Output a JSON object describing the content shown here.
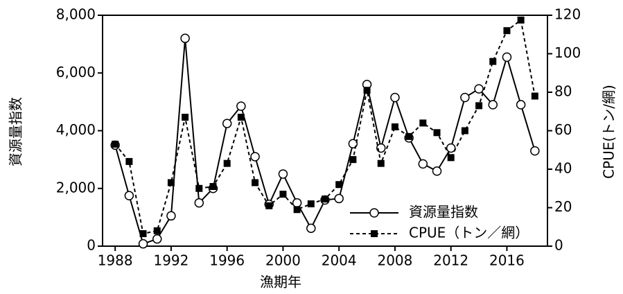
{
  "chart_data": {
    "type": "line",
    "x_label": "漁期年",
    "y_label": "資源量指数",
    "y2_label": "CPUE(トン/網)",
    "x": [
      1988,
      1989,
      1990,
      1991,
      1992,
      1993,
      1994,
      1995,
      1996,
      1997,
      1998,
      1999,
      2000,
      2001,
      2002,
      2003,
      2004,
      2005,
      2006,
      2007,
      2008,
      2009,
      2010,
      2011,
      2012,
      2013,
      2014,
      2015,
      2016,
      2017,
      2018
    ],
    "xlim": [
      1987.1,
      2018.9
    ],
    "xticks": [
      1988,
      1992,
      1996,
      2000,
      2004,
      2008,
      2012,
      2016
    ],
    "ylim": [
      0,
      8000
    ],
    "yticks": [
      0,
      {
        "value": 2000,
        "label": "2,000"
      },
      {
        "value": 4000,
        "label": "4,000"
      },
      {
        "value": 6000,
        "label": "6,000"
      },
      {
        "value": 8000,
        "label": "8,000"
      }
    ],
    "y2lim": [
      0,
      120
    ],
    "y2ticks": [
      0,
      20,
      40,
      60,
      80,
      100,
      120
    ],
    "legend": "bottom-right",
    "series": [
      {
        "name": "資源量指数",
        "color": "#000000",
        "marker": "circle",
        "dash": "solid",
        "values": [
          3500,
          1750,
          80,
          250,
          1050,
          7200,
          1500,
          2000,
          4250,
          4850,
          3100,
          1450,
          2500,
          1500,
          620,
          1600,
          1650,
          3550,
          5600,
          3400,
          5150,
          3750,
          2850,
          2600,
          3400,
          5150,
          5450,
          4900,
          6550,
          4900,
          3300
        ]
      },
      {
        "name": "CPUE（トン／網）",
        "color": "#000000",
        "marker": "square",
        "dash": "dashed",
        "axis": "y2",
        "values": [
          53,
          44,
          6.5,
          8,
          33,
          67,
          30,
          31,
          43,
          67,
          33,
          21,
          27,
          19,
          22,
          24.5,
          32,
          45,
          81,
          43,
          62,
          57,
          64,
          59,
          46,
          60,
          73,
          96,
          112,
          117.5,
          78
        ]
      }
    ]
  }
}
